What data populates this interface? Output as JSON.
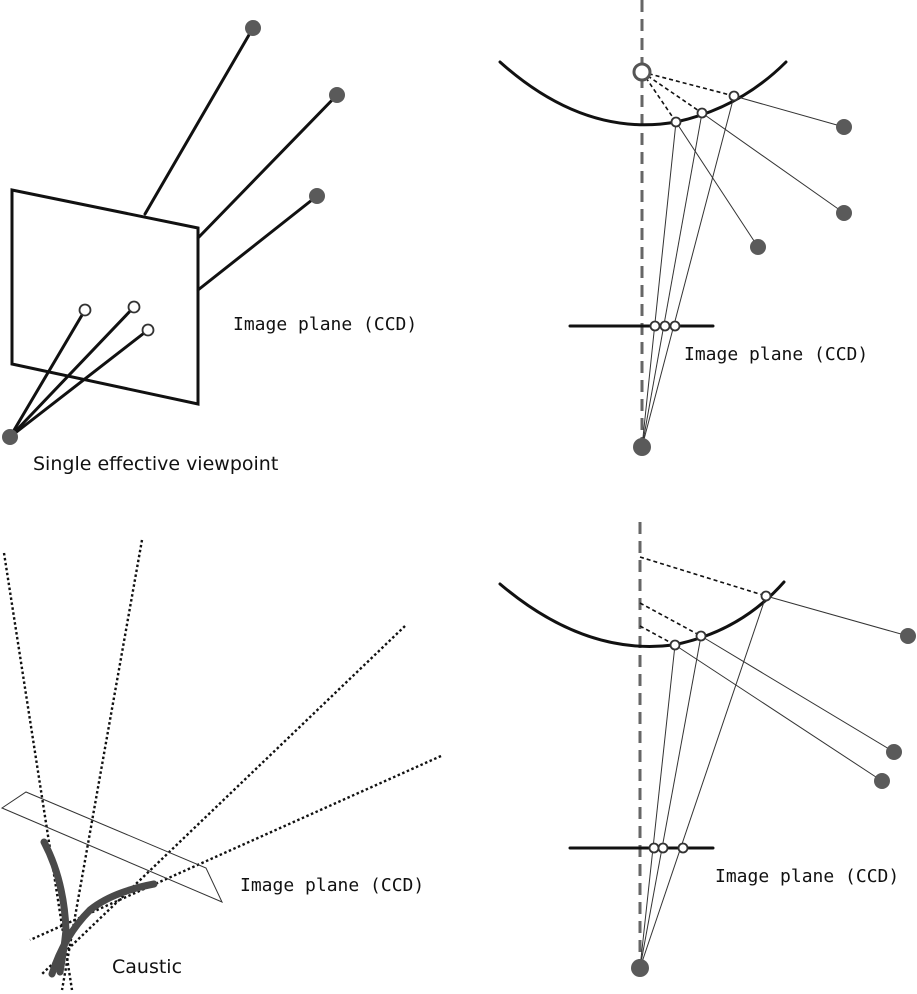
{
  "panels": {
    "top_left": {
      "image_plane_label": "Image plane (CCD)",
      "viewpoint_label": "Single effective viewpoint"
    },
    "top_right": {
      "image_plane_label": "Image plane (CCD)"
    },
    "bottom_left": {
      "image_plane_label": "Image plane (CCD)",
      "caustic_label": "Caustic"
    },
    "bottom_right": {
      "image_plane_label": "Image plane (CCD)"
    }
  },
  "colors": {
    "stroke": "#111111",
    "point_fill": "#5a5a5a",
    "axis": "#666666",
    "caustic": "#4a4a4a"
  }
}
